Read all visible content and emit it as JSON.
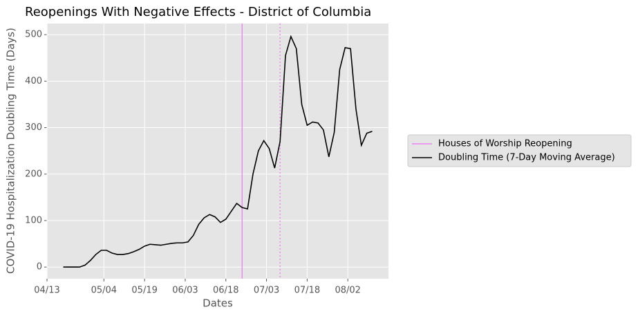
{
  "chart_data": {
    "type": "line",
    "title": "Reopenings With Negative Effects - District of Columbia",
    "xlabel": "Dates",
    "ylabel": "COVID-19 Hospitalization Doubling Time (Days)",
    "x": [
      "04/19",
      "04/21",
      "04/23",
      "04/25",
      "04/27",
      "04/29",
      "05/01",
      "05/03",
      "05/05",
      "05/07",
      "05/09",
      "05/11",
      "05/13",
      "05/15",
      "05/17",
      "05/19",
      "05/21",
      "05/23",
      "05/25",
      "05/27",
      "05/29",
      "05/31",
      "06/02",
      "06/04",
      "06/06",
      "06/08",
      "06/10",
      "06/12",
      "06/14",
      "06/16",
      "06/18",
      "06/20",
      "06/22",
      "06/24",
      "06/26",
      "06/28",
      "06/30",
      "07/02",
      "07/04",
      "07/06",
      "07/08",
      "07/10",
      "07/12",
      "07/14",
      "07/16",
      "07/18",
      "07/20",
      "07/22",
      "07/24",
      "07/26",
      "07/28",
      "07/30",
      "08/01",
      "08/03",
      "08/05",
      "08/07",
      "08/09",
      "08/11"
    ],
    "series": [
      {
        "name": "Doubling Time (7-Day Moving Average)",
        "color": "#000000",
        "values": [
          0,
          0,
          0,
          0,
          4,
          14,
          27,
          36,
          36,
          30,
          27,
          27,
          29,
          33,
          38,
          45,
          49,
          48,
          47,
          49,
          51,
          52,
          52,
          54,
          68,
          92,
          106,
          113,
          108,
          96,
          103,
          120,
          137,
          128,
          125,
          200,
          250,
          272,
          255,
          213,
          270,
          455,
          496,
          470,
          350,
          305,
          312,
          310,
          295,
          237,
          290,
          425,
          472,
          470,
          340,
          262,
          288,
          292
        ]
      }
    ],
    "vlines": [
      {
        "x": "06/24",
        "name": "Houses of Worship Reopening",
        "color": "#ee82ee",
        "style": "solid"
      },
      {
        "x": "07/08",
        "color": "#ee82ee",
        "style": "dotted"
      }
    ],
    "xlim": [
      "04/13",
      "08/17"
    ],
    "xticks": [
      "04/13",
      "05/04",
      "05/19",
      "06/03",
      "06/18",
      "07/03",
      "07/18",
      "08/02"
    ],
    "ylim": [
      -25,
      524
    ],
    "yticks": [
      0,
      100,
      200,
      300,
      400,
      500
    ],
    "grid": true,
    "legend": "outside right"
  }
}
